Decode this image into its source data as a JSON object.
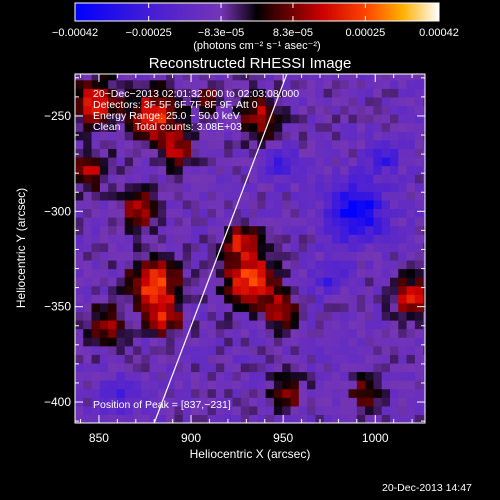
{
  "chart_data": {
    "type": "heatmap",
    "title": "Reconstructed RHESSI Image",
    "xlabel": "Heliocentric X (arcsec)",
    "ylabel": "Heliocentric Y (arcsec)",
    "xlim": [
      837,
      1027
    ],
    "ylim": [
      -411,
      -228
    ],
    "x_ticks": [
      850,
      900,
      950,
      1000
    ],
    "x_tick_labels": [
      "850",
      "900",
      "950",
      "1000"
    ],
    "y_ticks": [
      -250,
      -300,
      -350,
      -400
    ],
    "y_tick_labels": [
      "−250",
      "−300",
      "−350",
      "−400"
    ],
    "colorbar": {
      "range": [
        -0.00042,
        0.00042
      ],
      "tick_values": [
        -0.00042,
        -0.00025,
        -8.3e-05,
        8.3e-05,
        0.00025,
        0.00042
      ],
      "tick_labels": [
        "−0.00042",
        "−0.00025",
        "−8.3e−05",
        "8.3e−05",
        "0.00025",
        "0.00042"
      ],
      "label": "(photons cm⁻² s⁻¹ asec⁻²)"
    },
    "annotations": [
      "20−Dec−2013 02:01:32.000 to 02:03:08.000",
      "Detectors: 3F 5F 6F 7F 8F 9F, Att 0",
      "Energy Range: 25.0 − 50.0 keV",
      "Clean     Total counts: 3.08E+03"
    ],
    "peak_label": "Position of Peak = [837,−231]",
    "peak_position": [
      837,
      -231
    ],
    "limb_line": [
      [
        880,
        -411
      ],
      [
        952,
        -228
      ]
    ],
    "features": [
      {
        "name": "positive",
        "cx": 848,
        "cy": -242,
        "r": 12,
        "v": 0.0003
      },
      {
        "name": "positive",
        "cx": 880,
        "cy": -250,
        "r": 14,
        "v": 0.00032
      },
      {
        "name": "positive",
        "cx": 893,
        "cy": -268,
        "r": 9,
        "v": 0.00022
      },
      {
        "name": "positive",
        "cx": 938,
        "cy": -250,
        "r": 11,
        "v": 0.00025
      },
      {
        "name": "positive",
        "cx": 845,
        "cy": -278,
        "r": 10,
        "v": 0.00024
      },
      {
        "name": "positive",
        "cx": 872,
        "cy": -298,
        "r": 10,
        "v": 0.00026
      },
      {
        "name": "positive",
        "cx": 880,
        "cy": -338,
        "r": 13,
        "v": 0.00036
      },
      {
        "name": "positive",
        "cx": 886,
        "cy": -356,
        "r": 9,
        "v": 0.00024
      },
      {
        "name": "positive",
        "cx": 853,
        "cy": -360,
        "r": 10,
        "v": 0.00022
      },
      {
        "name": "positive",
        "cx": 932,
        "cy": -335,
        "r": 14,
        "v": 0.00034
      },
      {
        "name": "positive",
        "cx": 927,
        "cy": -315,
        "r": 8,
        "v": 0.00026
      },
      {
        "name": "positive",
        "cx": 948,
        "cy": -352,
        "r": 9,
        "v": 0.00022
      },
      {
        "name": "positive",
        "cx": 1020,
        "cy": -345,
        "r": 10,
        "v": 0.00028
      },
      {
        "name": "positive",
        "cx": 995,
        "cy": -395,
        "r": 8,
        "v": 0.0002
      },
      {
        "name": "positive",
        "cx": 952,
        "cy": -395,
        "r": 9,
        "v": 0.0002
      },
      {
        "name": "positive",
        "cx": 910,
        "cy": -240,
        "r": 7,
        "v": 0.00018
      },
      {
        "name": "negative",
        "cx": 990,
        "cy": -300,
        "r": 16,
        "v": -0.0003
      },
      {
        "name": "negative",
        "cx": 1005,
        "cy": -270,
        "r": 9,
        "v": -0.00018
      },
      {
        "name": "negative",
        "cx": 950,
        "cy": -275,
        "r": 9,
        "v": -0.00016
      },
      {
        "name": "negative",
        "cx": 975,
        "cy": -335,
        "r": 9,
        "v": -0.00016
      },
      {
        "name": "negative",
        "cx": 860,
        "cy": -395,
        "r": 10,
        "v": -0.00014
      }
    ]
  }
}
